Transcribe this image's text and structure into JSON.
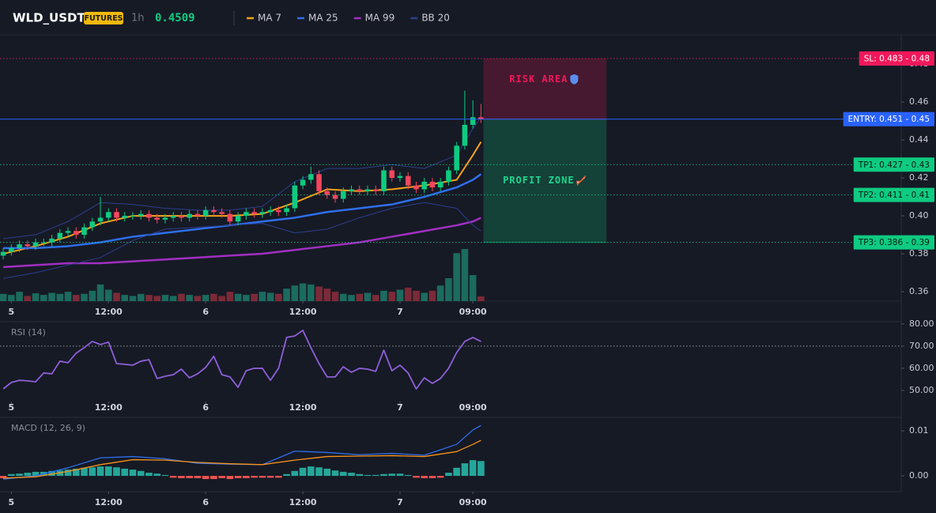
{
  "header": {
    "symbol": "WLD_USDT",
    "badge": "FUTURES",
    "interval": "1h",
    "price": 0.4509
  },
  "chart_data": [
    {
      "type": "candlestick",
      "x": [
        -1,
        0,
        1,
        2,
        3,
        4,
        5,
        6,
        7,
        8,
        9,
        10,
        11,
        12,
        13,
        14,
        15,
        16,
        17,
        18,
        19,
        20,
        21,
        22,
        23,
        24,
        25,
        26,
        27,
        28,
        29,
        30,
        31,
        32,
        33,
        34,
        35,
        36,
        37,
        38,
        39,
        40,
        41,
        42,
        43,
        44,
        45,
        46,
        47,
        48,
        49,
        50,
        51,
        52,
        53,
        54,
        55,
        56,
        57,
        58
      ],
      "open": [
        0.379,
        0.381,
        0.383,
        0.385,
        0.384,
        0.386,
        0.386,
        0.388,
        0.391,
        0.392,
        0.39,
        0.394,
        0.397,
        0.399,
        0.402,
        0.399,
        0.4,
        0.4,
        0.401,
        0.399,
        0.398,
        0.399,
        0.4,
        0.399,
        0.401,
        0.4,
        0.403,
        0.402,
        0.401,
        0.397,
        0.4,
        0.402,
        0.401,
        0.402,
        0.403,
        0.402,
        0.404,
        0.416,
        0.419,
        0.422,
        0.413,
        0.411,
        0.409,
        0.413,
        0.414,
        0.413,
        0.414,
        0.413,
        0.424,
        0.42,
        0.421,
        0.416,
        0.414,
        0.418,
        0.415,
        0.418,
        0.424,
        0.437,
        0.448,
        0.452
      ],
      "high": [
        0.383,
        0.385,
        0.387,
        0.387,
        0.388,
        0.388,
        0.39,
        0.393,
        0.394,
        0.394,
        0.396,
        0.399,
        0.41,
        0.404,
        0.404,
        0.402,
        0.402,
        0.403,
        0.403,
        0.401,
        0.401,
        0.402,
        0.402,
        0.403,
        0.403,
        0.405,
        0.405,
        0.404,
        0.403,
        0.402,
        0.404,
        0.404,
        0.404,
        0.405,
        0.405,
        0.406,
        0.418,
        0.421,
        0.426,
        0.424,
        0.415,
        0.413,
        0.415,
        0.416,
        0.416,
        0.416,
        0.416,
        0.426,
        0.426,
        0.423,
        0.423,
        0.418,
        0.42,
        0.42,
        0.42,
        0.426,
        0.439,
        0.466,
        0.461,
        0.459
      ],
      "low": [
        0.377,
        0.379,
        0.381,
        0.382,
        0.382,
        0.384,
        0.384,
        0.386,
        0.389,
        0.388,
        0.388,
        0.392,
        0.395,
        0.397,
        0.397,
        0.397,
        0.398,
        0.398,
        0.397,
        0.396,
        0.396,
        0.397,
        0.397,
        0.397,
        0.398,
        0.398,
        0.4,
        0.399,
        0.395,
        0.395,
        0.398,
        0.399,
        0.399,
        0.4,
        0.4,
        0.4,
        0.402,
        0.414,
        0.417,
        0.411,
        0.409,
        0.407,
        0.407,
        0.411,
        0.411,
        0.411,
        0.411,
        0.411,
        0.418,
        0.418,
        0.414,
        0.412,
        0.412,
        0.413,
        0.413,
        0.416,
        0.422,
        0.435,
        0.446,
        0.449
      ],
      "close": [
        0.381,
        0.383,
        0.385,
        0.384,
        0.386,
        0.386,
        0.388,
        0.391,
        0.392,
        0.39,
        0.394,
        0.397,
        0.399,
        0.402,
        0.399,
        0.4,
        0.4,
        0.401,
        0.399,
        0.398,
        0.399,
        0.4,
        0.399,
        0.401,
        0.4,
        0.403,
        0.402,
        0.401,
        0.397,
        0.4,
        0.402,
        0.401,
        0.402,
        0.403,
        0.402,
        0.404,
        0.416,
        0.419,
        0.422,
        0.413,
        0.411,
        0.409,
        0.413,
        0.414,
        0.413,
        0.414,
        0.413,
        0.424,
        0.42,
        0.421,
        0.416,
        0.414,
        0.418,
        0.415,
        0.418,
        0.424,
        0.437,
        0.448,
        0.452,
        0.4509
      ],
      "volume": [
        14,
        12,
        18,
        10,
        15,
        12,
        16,
        14,
        18,
        12,
        14,
        20,
        32,
        22,
        16,
        12,
        10,
        14,
        12,
        10,
        12,
        10,
        14,
        12,
        10,
        12,
        14,
        10,
        18,
        14,
        12,
        14,
        18,
        16,
        14,
        24,
        30,
        34,
        32,
        28,
        24,
        18,
        14,
        12,
        14,
        16,
        12,
        20,
        18,
        22,
        26,
        20,
        16,
        20,
        30,
        44,
        92,
        100,
        50,
        9
      ],
      "volume_lim": [
        0,
        100
      ],
      "up_color": "#0ecb81",
      "down_color": "#f6465d",
      "volume_up_color": "#1b6b5e",
      "volume_down_color": "#7c2a37",
      "xlim": [
        -1.4,
        109.9
      ],
      "xticks": [
        {
          "value": 0,
          "label": "5"
        },
        {
          "value": 12,
          "label": "12:00"
        },
        {
          "value": 24,
          "label": "6"
        },
        {
          "value": 36,
          "label": "12:00"
        },
        {
          "value": 48,
          "label": "7"
        },
        {
          "value": 57,
          "label": "09:00"
        }
      ],
      "ylim": [
        0.355,
        0.493
      ],
      "yticks": [
        0.36,
        0.38,
        {
          "value": 0.4,
          "label": "0.40"
        },
        0.42,
        0.44,
        0.46,
        0.48
      ],
      "lines": [
        {
          "name": "MA 7",
          "color": "#f7a21b",
          "width": 2,
          "x": [
            -1,
            3,
            7,
            11,
            15,
            19,
            23,
            27,
            31,
            35,
            39,
            43,
            47,
            51,
            55,
            57,
            58
          ],
          "values": [
            0.38,
            0.384,
            0.389,
            0.396,
            0.4,
            0.4,
            0.4,
            0.4,
            0.401,
            0.407,
            0.414,
            0.413,
            0.414,
            0.416,
            0.419,
            0.432,
            0.439
          ]
        },
        {
          "name": "MA 25",
          "color": "#2f6fed",
          "width": 2.5,
          "x": [
            -1,
            3,
            7,
            11,
            15,
            19,
            23,
            27,
            31,
            35,
            39,
            43,
            47,
            51,
            55,
            57,
            58
          ],
          "values": [
            0.383,
            0.383,
            0.384,
            0.386,
            0.389,
            0.391,
            0.393,
            0.395,
            0.397,
            0.399,
            0.402,
            0.404,
            0.406,
            0.41,
            0.415,
            0.419,
            0.422
          ]
        },
        {
          "name": "MA 99",
          "color": "#a12fc2",
          "width": 2.5,
          "x": [
            -1,
            3,
            7,
            11,
            15,
            19,
            23,
            27,
            31,
            35,
            39,
            43,
            47,
            51,
            55,
            57,
            58
          ],
          "values": [
            0.373,
            0.374,
            0.375,
            0.375,
            0.376,
            0.377,
            0.378,
            0.379,
            0.38,
            0.382,
            0.384,
            0.386,
            0.389,
            0.392,
            0.395,
            0.397,
            0.399
          ]
        },
        {
          "name": "BB 20",
          "color": "#2c3f8c",
          "width": 1,
          "x": [
            -1,
            3,
            7,
            11,
            15,
            19,
            23,
            27,
            31,
            35,
            39,
            43,
            47,
            51,
            55,
            57,
            58
          ],
          "upper": [
            0.388,
            0.39,
            0.397,
            0.407,
            0.406,
            0.404,
            0.403,
            0.403,
            0.405,
            0.418,
            0.425,
            0.425,
            0.427,
            0.425,
            0.432,
            0.446,
            0.452
          ],
          "lower": [
            0.367,
            0.37,
            0.374,
            0.378,
            0.387,
            0.393,
            0.394,
            0.395,
            0.396,
            0.391,
            0.393,
            0.399,
            0.404,
            0.407,
            0.404,
            0.395,
            0.392
          ]
        }
      ],
      "levels": [
        {
          "value": 0.483,
          "label": "SL: 0.483 - 0.48",
          "color": "#f0185a",
          "text_color": "#ffffff",
          "style": "dotted"
        },
        {
          "value": 0.451,
          "label": "ENTRY: 0.451 - 0.45",
          "color": "#2962ff",
          "text_color": "#ffffff",
          "style": "solid"
        },
        {
          "value": 0.427,
          "label": "TP1: 0.427 - 0.43",
          "color": "#0ecb81",
          "text_color": "#0b1a12",
          "style": "dotted"
        },
        {
          "value": 0.411,
          "label": "TP2: 0.411 - 0.41",
          "color": "#0ecb81",
          "text_color": "#0b1a12",
          "style": "dotted"
        },
        {
          "value": 0.386,
          "label": "TP3: 0.386 - 0.39",
          "color": "#0ecb81",
          "text_color": "#0b1a12",
          "style": "dotted"
        }
      ],
      "zones": [
        {
          "label": "RISK AREA",
          "range": [
            0.451,
            0.483
          ],
          "xrange": [
            58.3,
            73.5
          ],
          "color": "#f0185a",
          "text_color": "#f0185a"
        },
        {
          "label": "PROFIT ZONE",
          "range": [
            0.386,
            0.451
          ],
          "xrange": [
            58.3,
            73.5
          ],
          "color": "#0ecb81",
          "text_color": "#22d38e"
        }
      ]
    },
    {
      "type": "line",
      "title": "RSI (14)",
      "color": "#8e5fd8",
      "x": [
        -1,
        0,
        1,
        2,
        3,
        4,
        5,
        6,
        7,
        8,
        9,
        10,
        11,
        12,
        13,
        14,
        15,
        16,
        17,
        18,
        19,
        20,
        21,
        22,
        23,
        24,
        25,
        26,
        27,
        28,
        29,
        30,
        31,
        32,
        33,
        34,
        35,
        36,
        37,
        38,
        39,
        40,
        41,
        42,
        43,
        44,
        45,
        46,
        47,
        48,
        49,
        50,
        51,
        52,
        53,
        54,
        55,
        56,
        57,
        58
      ],
      "values": [
        50.7,
        53.6,
        54.6,
        54.3,
        53.9,
        57.9,
        57.5,
        63.2,
        62.5,
        66.8,
        69.3,
        72.1,
        70.7,
        71.8,
        62.1,
        61.8,
        61.4,
        63.2,
        63.9,
        55.4,
        56.4,
        57.1,
        59.6,
        55.7,
        57.5,
        60.4,
        65.4,
        57.1,
        56.1,
        51.4,
        58.9,
        60,
        60,
        54.6,
        60,
        73.9,
        74.6,
        77.1,
        69.3,
        62.1,
        56.1,
        56.1,
        60.7,
        58.2,
        60,
        59.6,
        58.6,
        68.2,
        58.9,
        61.4,
        57.9,
        50.7,
        55.7,
        53.2,
        55.4,
        60,
        67.1,
        72.1,
        73.9,
        72.1
      ],
      "overbought": 70,
      "xlim": [
        -1.4,
        109.9
      ],
      "xticks": [
        {
          "value": 0,
          "label": "5"
        },
        {
          "value": 12,
          "label": "12:00"
        },
        {
          "value": 24,
          "label": "6"
        },
        {
          "value": 36,
          "label": "12:00"
        },
        {
          "value": 48,
          "label": "7"
        },
        {
          "value": 57,
          "label": "09:00"
        }
      ],
      "ylim": [
        45,
        81
      ],
      "yticks": [
        {
          "value": 50,
          "label": "50.00"
        },
        {
          "value": 60,
          "label": "60.00"
        },
        {
          "value": 70,
          "label": "70.00"
        },
        {
          "value": 80,
          "label": "80.00"
        }
      ]
    },
    {
      "type": "macd",
      "title": "MACD (12, 26, 9)",
      "x": [
        -1,
        0,
        1,
        2,
        3,
        4,
        5,
        6,
        7,
        8,
        9,
        10,
        11,
        12,
        13,
        14,
        15,
        16,
        17,
        18,
        19,
        20,
        21,
        22,
        23,
        24,
        25,
        26,
        27,
        28,
        29,
        30,
        31,
        32,
        33,
        34,
        35,
        36,
        37,
        38,
        39,
        40,
        41,
        42,
        43,
        44,
        45,
        46,
        47,
        48,
        49,
        50,
        51,
        52,
        53,
        54,
        55,
        56,
        57,
        58
      ],
      "histogram": [
        -0.0005,
        0.0004,
        0.0005,
        0.0007,
        0.0009,
        0.0009,
        0.0011,
        0.0012,
        0.0014,
        0.0016,
        0.0018,
        0.0019,
        0.0021,
        0.0021,
        0.0019,
        0.0016,
        0.0014,
        0.0011,
        0.0007,
        0.0005,
        0.0002,
        -0.0004,
        -0.0005,
        -0.0005,
        -0.0005,
        -0.0007,
        -0.0007,
        -0.0005,
        -0.0007,
        -0.0005,
        -0.0005,
        -0.0004,
        -0.0004,
        -0.0004,
        -0.0004,
        0.0004,
        0.0011,
        0.0018,
        0.0021,
        0.0019,
        0.0016,
        0.0012,
        0.0009,
        0.0007,
        0.0004,
        0.0002,
        0.0002,
        0.0004,
        0.0005,
        0.0005,
        0.0002,
        -0.0004,
        -0.0005,
        -0.0005,
        -0.0004,
        0.0007,
        0.0018,
        0.0028,
        0.0035,
        0.0033
      ],
      "up_color": "#26a69a",
      "down_color": "#ef5350",
      "macd": {
        "color": "#2f6fed",
        "x": [
          -1,
          3,
          7,
          11,
          15,
          19,
          23,
          27,
          31,
          35,
          39,
          43,
          47,
          51,
          55,
          57,
          58
        ],
        "values": [
          -0.0007,
          0.0,
          0.0018,
          0.004,
          0.0043,
          0.0038,
          0.0028,
          0.0026,
          0.0025,
          0.0055,
          0.0052,
          0.0047,
          0.005,
          0.0046,
          0.007,
          0.0102,
          0.0112
        ]
      },
      "signal": {
        "color": "#f7931a",
        "x": [
          -1,
          3,
          7,
          11,
          15,
          19,
          23,
          27,
          31,
          35,
          39,
          43,
          47,
          51,
          55,
          57,
          58
        ],
        "values": [
          -0.0005,
          -0.0002,
          0.001,
          0.0025,
          0.0036,
          0.0035,
          0.003,
          0.0027,
          0.0025,
          0.0035,
          0.0043,
          0.0044,
          0.0045,
          0.0043,
          0.0054,
          0.007,
          0.0079
        ]
      },
      "xlim": [
        -1.4,
        109.9
      ],
      "xticks": [
        {
          "value": 0,
          "label": "5"
        },
        {
          "value": 12,
          "label": "12:00"
        },
        {
          "value": 24,
          "label": "6"
        },
        {
          "value": 36,
          "label": "12:00"
        },
        {
          "value": 48,
          "label": "7"
        },
        {
          "value": 57,
          "label": "09:00"
        }
      ],
      "ylim": [
        -0.0035,
        0.013
      ],
      "yticks": [
        {
          "value": 0,
          "label": "0.00"
        },
        {
          "value": 0.01,
          "label": "0.01"
        }
      ]
    }
  ]
}
